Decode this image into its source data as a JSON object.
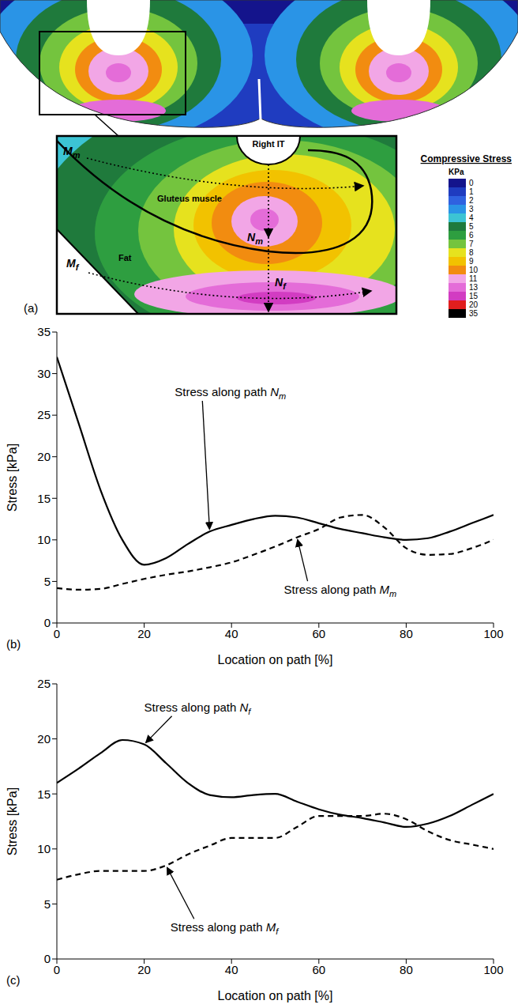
{
  "panel_a": {
    "label": "(a)",
    "texts": {
      "right_it": "Right IT",
      "gluteus": "Gluteus muscle",
      "fat": "Fat",
      "mm": "Mm",
      "nm": "Nm",
      "mf": "Mf",
      "nf": "Nf"
    },
    "colorbar": {
      "title": "Compressive Stress",
      "unit": "KPa",
      "ticks": [
        0,
        1,
        2,
        3,
        4,
        5,
        6,
        7,
        8,
        9,
        10,
        11,
        13,
        15,
        20,
        35
      ],
      "colors": [
        "#14148c",
        "#1f3cc0",
        "#2f62e0",
        "#2a94e6",
        "#3cc4d4",
        "#1f7a3c",
        "#2e9e40",
        "#74c43e",
        "#e6e21e",
        "#f2c200",
        "#f28c10",
        "#f2a6e6",
        "#e46cd8",
        "#d23cc2",
        "#e01e1e",
        "#000000"
      ]
    }
  },
  "chart_data": [
    {
      "type": "line",
      "panel": "(b)",
      "x_label": "Location on path [%]",
      "y_label": "Stress [kPa]",
      "x": [
        0,
        5,
        10,
        15,
        20,
        25,
        30,
        35,
        40,
        45,
        50,
        55,
        60,
        65,
        70,
        75,
        80,
        85,
        90,
        95,
        100
      ],
      "xlim": [
        0,
        100
      ],
      "xticks": [
        0,
        20,
        40,
        60,
        80,
        100
      ],
      "ylim": [
        0,
        35
      ],
      "yticks": [
        0,
        5,
        10,
        15,
        20,
        25,
        30,
        35
      ],
      "grid": false,
      "series": [
        {
          "name": "Stress along path Nm",
          "color": "#000000",
          "line_style": "solid",
          "values": [
            32,
            24,
            16,
            10,
            7,
            7.8,
            9.5,
            11,
            11.8,
            12.5,
            12.9,
            12.7,
            12,
            11.3,
            10.8,
            10.3,
            10,
            10.2,
            11,
            12,
            13
          ]
        },
        {
          "name": "Stress along path Mm",
          "color": "#000000",
          "line_style": "dashed",
          "values": [
            4.2,
            4,
            4.1,
            4.7,
            5.3,
            5.8,
            6.2,
            6.7,
            7.3,
            8.2,
            9.2,
            10.3,
            11.3,
            12.7,
            13,
            11.5,
            9,
            8.2,
            8.3,
            9,
            10
          ]
        }
      ]
    },
    {
      "type": "line",
      "panel": "(c)",
      "x_label": "Location on path [%]",
      "y_label": "Stress [kPa]",
      "x": [
        0,
        5,
        10,
        15,
        20,
        25,
        30,
        35,
        40,
        45,
        50,
        55,
        60,
        65,
        70,
        75,
        80,
        85,
        90,
        95,
        100
      ],
      "xlim": [
        0,
        100
      ],
      "xticks": [
        0,
        20,
        40,
        60,
        80,
        100
      ],
      "ylim": [
        0,
        25
      ],
      "yticks": [
        0,
        5,
        10,
        15,
        20,
        25
      ],
      "grid": false,
      "series": [
        {
          "name": "Stress along path Nf",
          "color": "#000000",
          "line_style": "solid",
          "values": [
            16,
            17.3,
            18.7,
            19.9,
            19.5,
            17.8,
            16,
            14.9,
            14.7,
            14.9,
            15,
            14.3,
            13.6,
            13.1,
            12.8,
            12.4,
            12,
            12.3,
            13,
            14,
            15
          ]
        },
        {
          "name": "Stress along path Mf",
          "color": "#000000",
          "line_style": "dashed",
          "values": [
            7.2,
            7.7,
            8,
            8,
            8,
            8.5,
            9.5,
            10.3,
            11,
            11,
            11,
            12,
            13,
            13,
            13,
            13.2,
            12.7,
            11.6,
            10.8,
            10.4,
            10
          ]
        }
      ]
    }
  ]
}
